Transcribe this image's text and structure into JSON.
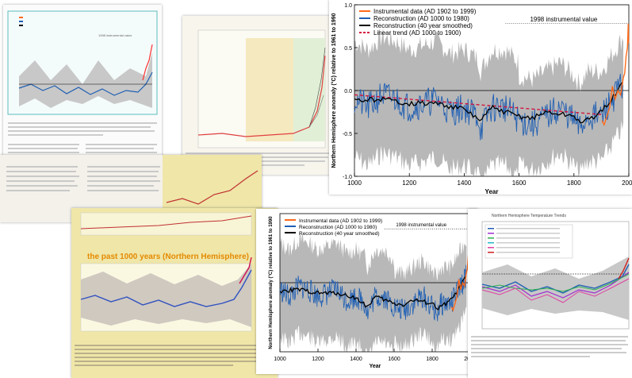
{
  "chart_data": [
    {
      "type": "line",
      "title": "",
      "xlabel": "Year",
      "ylabel": "Northern Hemisphere anomaly (°C) relative to 1961 to 1990",
      "xlim": [
        1000,
        2000
      ],
      "ylim": [
        -1.0,
        1.0
      ],
      "x_ticks": [
        "1000",
        "1200",
        "1400",
        "1600",
        "1800",
        "2000"
      ],
      "y_ticks": [
        "-1.0",
        "-0.5",
        "0.0",
        "0.5",
        "1.0"
      ],
      "annotation": "1998 instrumental value",
      "legend": "top-left",
      "grid": false,
      "series": [
        {
          "name": "Instrumental data (AD 1902 to 1999)",
          "color": "#ff6a1a",
          "x": [
            1902,
            1910,
            1920,
            1930,
            1940,
            1950,
            1960,
            1970,
            1980,
            1985,
            1990,
            1995,
            1998,
            1999
          ],
          "y": [
            -0.35,
            -0.4,
            -0.3,
            -0.2,
            0.05,
            -0.1,
            0.0,
            -0.05,
            0.15,
            0.2,
            0.4,
            0.5,
            0.78,
            0.55
          ]
        },
        {
          "name": "Reconstruction (AD 1000 to 1980)",
          "color": "#1f5fb3",
          "x": [
            1000,
            1050,
            1100,
            1150,
            1200,
            1250,
            1300,
            1350,
            1400,
            1450,
            1460,
            1500,
            1550,
            1600,
            1650,
            1700,
            1750,
            1800,
            1820,
            1850,
            1900,
            1950,
            1980
          ],
          "y": [
            -0.1,
            -0.2,
            -0.05,
            -0.1,
            -0.2,
            -0.15,
            -0.1,
            -0.25,
            -0.2,
            -0.3,
            -0.45,
            -0.2,
            -0.2,
            -0.35,
            -0.4,
            -0.3,
            -0.2,
            -0.35,
            -0.45,
            -0.3,
            -0.3,
            -0.05,
            0.1
          ]
        },
        {
          "name": "Reconstruction (40 year smoothed)",
          "color": "#000000",
          "x": [
            1000,
            1100,
            1200,
            1300,
            1400,
            1460,
            1500,
            1600,
            1650,
            1700,
            1800,
            1830,
            1900,
            1950,
            1980
          ],
          "y": [
            -0.12,
            -0.1,
            -0.15,
            -0.15,
            -0.22,
            -0.35,
            -0.2,
            -0.3,
            -0.32,
            -0.25,
            -0.3,
            -0.38,
            -0.25,
            -0.05,
            0.1
          ]
        },
        {
          "name": "Linear trend (AD 1000 to 1900)",
          "color": "#d4143c",
          "x": [
            1000,
            1900
          ],
          "y": [
            -0.05,
            -0.28
          ]
        }
      ]
    },
    {
      "type": "line",
      "title": "",
      "xlabel": "Year",
      "ylabel": "Northern Hemisphere anomaly (°C) relative to 1961 to 1990",
      "xlim": [
        1000,
        2000
      ],
      "ylim": [
        -1.0,
        1.0
      ],
      "x_ticks": [
        "1000",
        "1200",
        "1400",
        "1600",
        "1800",
        "2000"
      ],
      "annotation": "1998 instrumental value",
      "legend": "top-left",
      "series": [
        {
          "name": "Instrumental data (AD 1902 to 1999)",
          "color": "#ff6a1a"
        },
        {
          "name": "Reconstruction (AD 1000 to 1980)",
          "color": "#1f5fb3"
        },
        {
          "name": "Reconstruction (40 year smoothed)",
          "color": "#000000"
        }
      ]
    }
  ],
  "panels": {
    "top_left": {
      "annotation": "1998 instrumental value"
    },
    "bottom_left": {
      "banner": "the past 1000 years (Northern Hemisphere)"
    },
    "bottom_right": {
      "title": "Northern Hemisphere Temperature Trends"
    }
  },
  "colors": {
    "uncertainty": "#b8b8b8",
    "zero_line": "#000000"
  }
}
